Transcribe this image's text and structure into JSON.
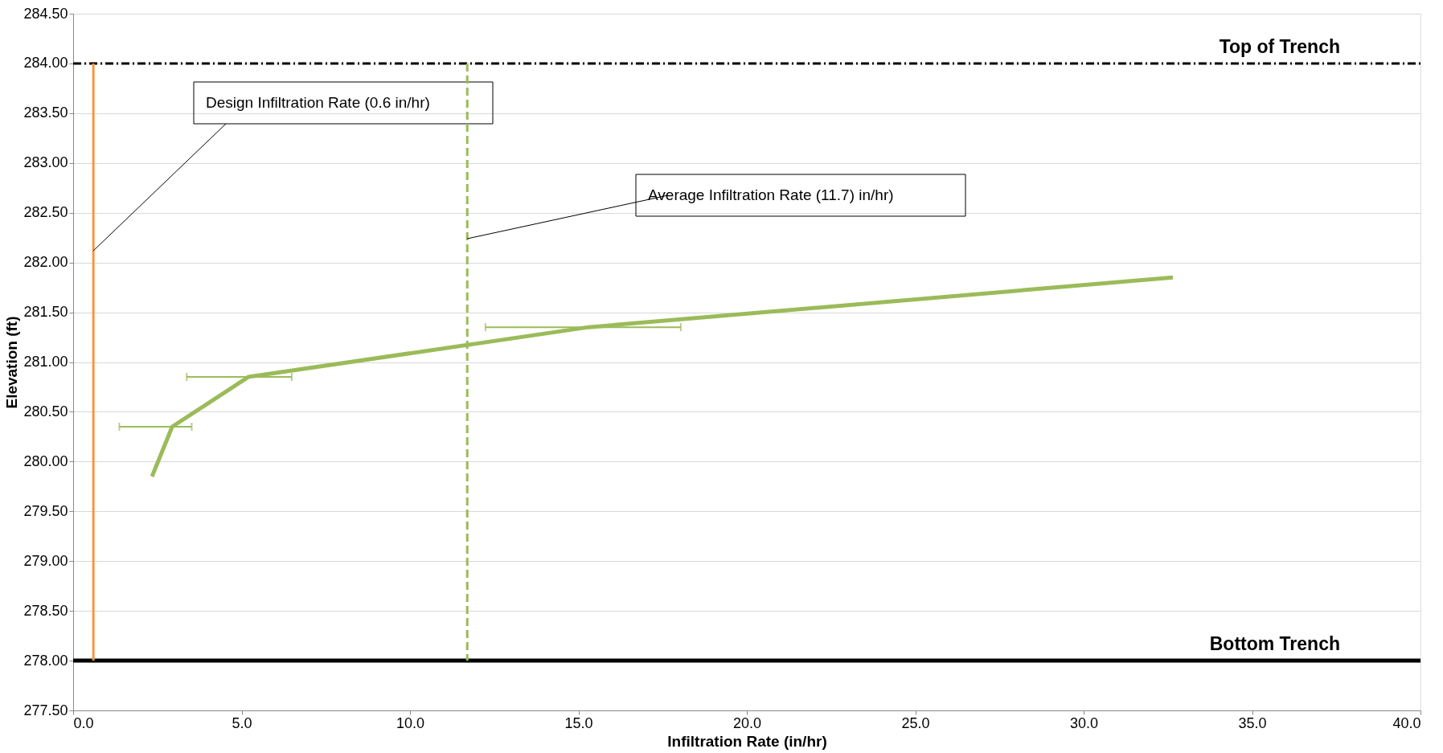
{
  "chart_data": {
    "type": "line",
    "xlabel": "Infiltration Rate (in/hr)",
    "ylabel": "Elevation (ft)",
    "x": [
      2.34,
      2.94,
      5.2,
      15.3,
      32.65
    ],
    "series": [
      {
        "color": "#9bbb59",
        "values": [
          279.85,
          280.35,
          280.85,
          281.35,
          281.85
        ],
        "xerrors": [
          null,
          [
            1.37,
            3.52
          ],
          [
            3.37,
            6.49
          ],
          [
            12.24,
            18.04
          ],
          null
        ]
      }
    ],
    "xlim": [
      0,
      40
    ],
    "ylim": [
      277.5,
      284.5
    ],
    "xticks": [
      {
        "value": 0,
        "label": "0.0"
      },
      {
        "value": 5,
        "label": "5.0"
      },
      {
        "value": 10,
        "label": "10.0"
      },
      {
        "value": 15,
        "label": "15.0"
      },
      {
        "value": 20,
        "label": "20.0"
      },
      {
        "value": 25,
        "label": "25.0"
      },
      {
        "value": 30,
        "label": "30.0"
      },
      {
        "value": 35,
        "label": "35.0"
      },
      {
        "value": 40,
        "label": "40.0"
      }
    ],
    "yticks": [
      {
        "value": 277.5,
        "label": "277.50"
      },
      {
        "value": 278,
        "label": "278.00"
      },
      {
        "value": 278.5,
        "label": "278.50"
      },
      {
        "value": 279,
        "label": "279.00"
      },
      {
        "value": 279.5,
        "label": "279.50"
      },
      {
        "value": 280,
        "label": "280.00"
      },
      {
        "value": 280.5,
        "label": "280.50"
      },
      {
        "value": 281,
        "label": "281.00"
      },
      {
        "value": 281.5,
        "label": "281.50"
      },
      {
        "value": 282,
        "label": "282.00"
      },
      {
        "value": 282.5,
        "label": "282.50"
      },
      {
        "value": 283,
        "label": "283.00"
      },
      {
        "value": 283.5,
        "label": "283.50"
      },
      {
        "value": 284,
        "label": "284.00"
      },
      {
        "value": 284.5,
        "label": "284.50"
      }
    ],
    "ref_lines": [
      {
        "axis": "y",
        "value": 284,
        "label": "Top of Trench",
        "color": "#000000",
        "line_style": "dashdot"
      },
      {
        "axis": "y",
        "value": 278,
        "label": "Bottom Trench",
        "color": "#000000",
        "line_style": "solid"
      },
      {
        "axis": "x",
        "value": 0.6,
        "label": "Design Infiltration Rate (0.6 in/hr)",
        "color": "#f79646",
        "line_style": "solid"
      },
      {
        "axis": "x",
        "value": 11.7,
        "label": "Average Infiltration Rate (11.7)  in/hr)",
        "color": "#9bbb59",
        "line_style": "dashed"
      }
    ],
    "grid": "y",
    "marker": "none",
    "line_style": "solid"
  }
}
